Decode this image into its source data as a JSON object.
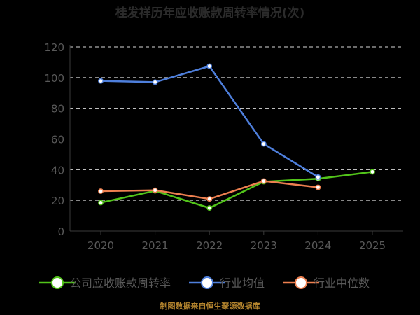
{
  "chart_data": {
    "type": "line",
    "title": "桂发祥历年应收账款周转率情况(次)",
    "categories": [
      "2020",
      "2021",
      "2022",
      "2023",
      "2024",
      "2025"
    ],
    "ylim": [
      0,
      120
    ],
    "yticks": [
      0,
      20,
      40,
      60,
      80,
      100,
      120
    ],
    "grid": true,
    "legend_position": "bottom",
    "series": [
      {
        "name": "公司应收账款周转率",
        "color": "#52c41a",
        "values": [
          18.5,
          26.2,
          15.0,
          32.2,
          34.1,
          38.6
        ]
      },
      {
        "name": "行业均值",
        "color": "#4e7fdc",
        "values": [
          97.8,
          97.0,
          107.4,
          56.8,
          35.2,
          null
        ]
      },
      {
        "name": "行业中位数",
        "color": "#ee8050",
        "values": [
          26.0,
          26.6,
          20.9,
          32.6,
          28.5,
          null
        ]
      }
    ]
  },
  "footer": "制图数据来自恒生聚源数据库"
}
